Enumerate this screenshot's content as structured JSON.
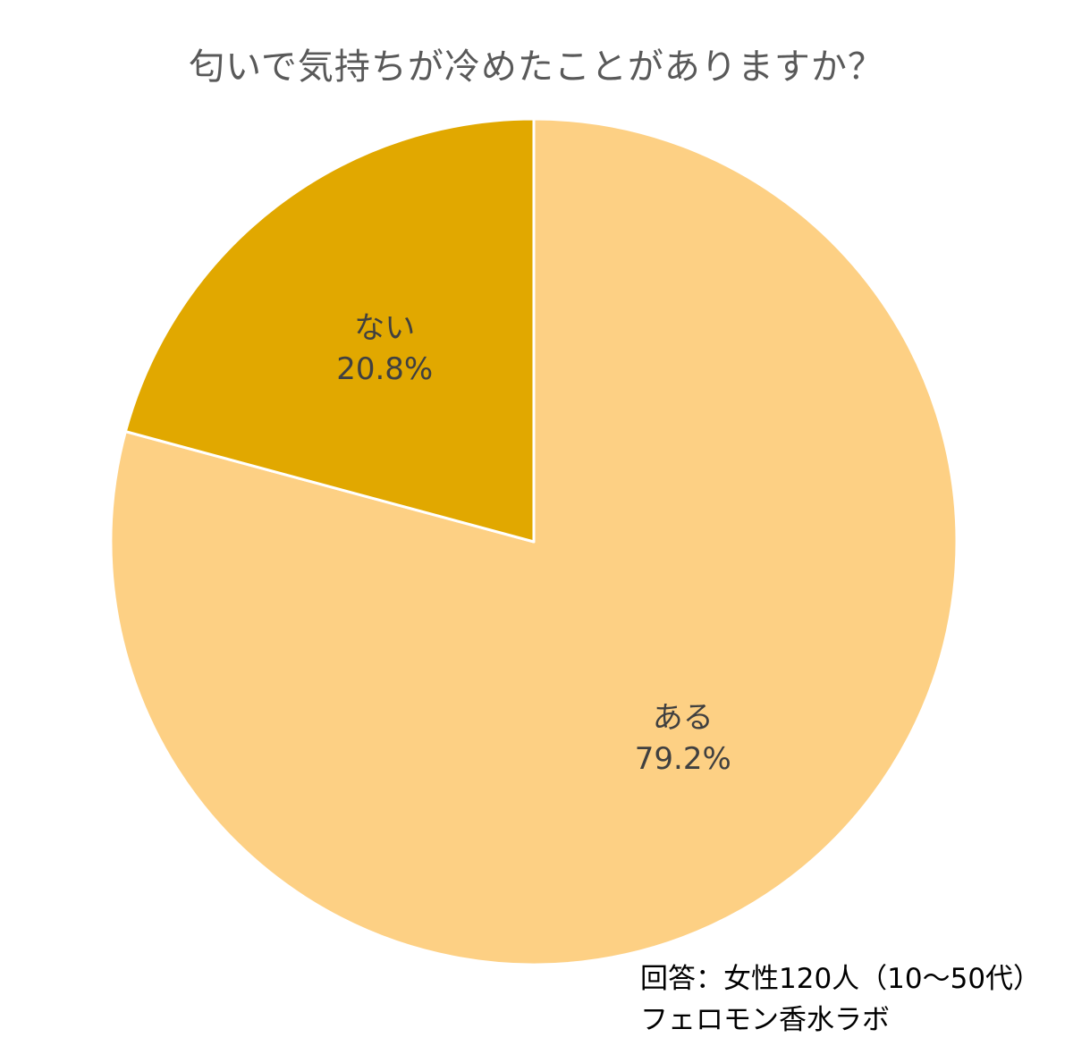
{
  "chart_data": {
    "type": "pie",
    "title": "匂いで気持ちが冷めたことがありますか？",
    "slices": [
      {
        "label": "ある",
        "value": 79.2,
        "value_label": "79.2%",
        "color": "#FDD084"
      },
      {
        "label": "ない",
        "value": 20.8,
        "value_label": "20.8%",
        "color": "#E1A800"
      }
    ],
    "start": "12 o'clock",
    "direction": "clockwise",
    "slice_border_color": "#ffffff",
    "legend": "none"
  },
  "footnote": {
    "respondents": "回答：女性120人（10～50代）",
    "source": "フェロモン香水ラボ"
  }
}
